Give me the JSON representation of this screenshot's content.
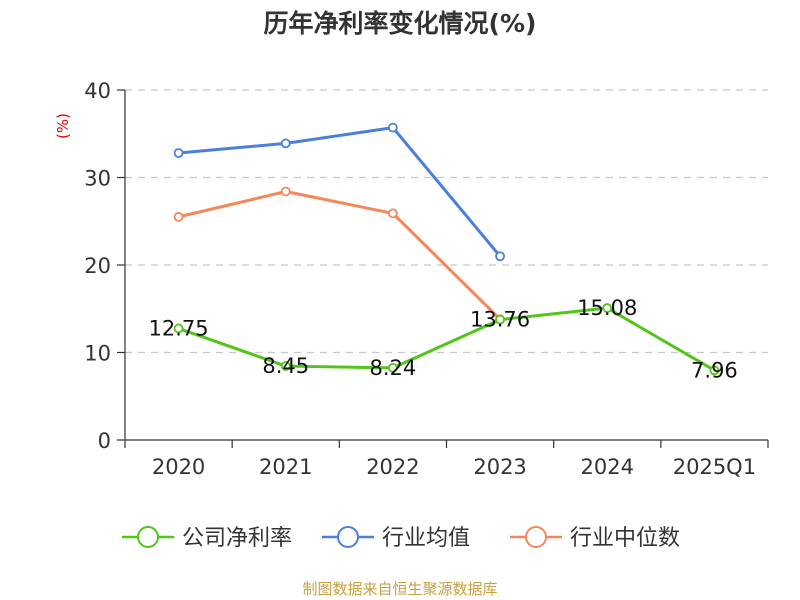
{
  "chart_data": {
    "type": "line",
    "title": "历年净利率变化情况(%)",
    "ylabel": "(%)",
    "ylim": [
      0,
      40
    ],
    "yticks": [
      0,
      10,
      20,
      30,
      40
    ],
    "categories": [
      "2020",
      "2021",
      "2022",
      "2023",
      "2024",
      "2025Q1"
    ],
    "grid": true,
    "legend_position": "bottom",
    "series": [
      {
        "name": "公司净利率",
        "color": "#52c41a",
        "values": [
          12.75,
          8.45,
          8.24,
          13.76,
          15.08,
          7.96
        ],
        "labels": [
          "12.75",
          "8.45",
          "8.24",
          "13.76",
          "15.08",
          "7.96"
        ]
      },
      {
        "name": "行业均值",
        "color": "#4a7fdc",
        "values": [
          32.8,
          33.9,
          35.7,
          21.0,
          null,
          null
        ]
      },
      {
        "name": "行业中位数",
        "color": "#f5875a",
        "values": [
          25.5,
          28.4,
          25.9,
          13.8,
          null,
          null
        ]
      }
    ],
    "source": "制图数据来自恒生聚源数据库"
  }
}
